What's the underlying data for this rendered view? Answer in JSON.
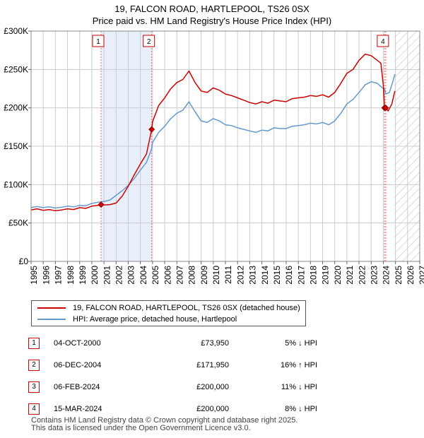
{
  "title": {
    "line1": "19, FALCON ROAD, HARTLEPOOL, TS26 0SX",
    "line2": "Price paid vs. HM Land Registry's House Price Index (HPI)"
  },
  "colors": {
    "property_line": "#cc0000",
    "hpi_line": "#6699cc",
    "shade": "#e8eefa",
    "grid": "#cccccc",
    "marker_dash": "#e07070"
  },
  "chart_data": {
    "type": "line",
    "xlim": [
      1995,
      2027
    ],
    "ylim": [
      0,
      300000
    ],
    "x_ticks": [
      "1995",
      "1996",
      "1997",
      "1998",
      "1999",
      "2000",
      "2001",
      "2002",
      "2003",
      "2004",
      "2005",
      "2006",
      "2007",
      "2008",
      "2009",
      "2010",
      "2011",
      "2012",
      "2013",
      "2014",
      "2015",
      "2016",
      "2017",
      "2018",
      "2019",
      "2020",
      "2021",
      "2022",
      "2023",
      "2024",
      "2025",
      "2026",
      "2027"
    ],
    "y_ticks": [
      {
        "value": 0,
        "label": "£0"
      },
      {
        "value": 50000,
        "label": "£50K"
      },
      {
        "value": 100000,
        "label": "£100K"
      },
      {
        "value": 150000,
        "label": "£150K"
      },
      {
        "value": 200000,
        "label": "£200K"
      },
      {
        "value": 250000,
        "label": "£250K"
      },
      {
        "value": 300000,
        "label": "£300K"
      }
    ],
    "shaded_ranges": [
      [
        2000.76,
        2004.93
      ]
    ],
    "future_hatch_from": 2024.9,
    "series": [
      {
        "name": "19, FALCON ROAD, HARTLEPOOL, TS26 0SX (detached house)",
        "color": "#cc0000",
        "points": [
          [
            1995,
            67000
          ],
          [
            1995.5,
            68500
          ],
          [
            1996,
            66500
          ],
          [
            1996.5,
            67500
          ],
          [
            1997,
            66000
          ],
          [
            1997.5,
            67000
          ],
          [
            1998,
            68500
          ],
          [
            1998.5,
            67500
          ],
          [
            1999,
            70000
          ],
          [
            1999.5,
            69000
          ],
          [
            2000,
            72000
          ],
          [
            2000.5,
            73000
          ],
          [
            2000.76,
            73950
          ],
          [
            2001,
            73500
          ],
          [
            2001.5,
            74000
          ],
          [
            2002,
            76000
          ],
          [
            2002.5,
            85000
          ],
          [
            2003,
            98000
          ],
          [
            2003.5,
            113000
          ],
          [
            2004,
            127000
          ],
          [
            2004.5,
            140000
          ],
          [
            2004.93,
            171950
          ],
          [
            2005,
            182000
          ],
          [
            2005.5,
            203000
          ],
          [
            2006,
            213000
          ],
          [
            2006.5,
            225000
          ],
          [
            2007,
            233000
          ],
          [
            2007.5,
            237000
          ],
          [
            2008,
            248000
          ],
          [
            2008.5,
            233000
          ],
          [
            2009,
            222000
          ],
          [
            2009.5,
            220000
          ],
          [
            2010,
            226000
          ],
          [
            2010.5,
            223000
          ],
          [
            2011,
            218000
          ],
          [
            2011.5,
            216000
          ],
          [
            2012,
            213000
          ],
          [
            2012.5,
            210000
          ],
          [
            2013,
            207000
          ],
          [
            2013.5,
            205000
          ],
          [
            2014,
            208000
          ],
          [
            2014.5,
            206000
          ],
          [
            2015,
            210000
          ],
          [
            2015.5,
            209000
          ],
          [
            2016,
            208000
          ],
          [
            2016.5,
            212000
          ],
          [
            2017,
            213000
          ],
          [
            2017.5,
            214000
          ],
          [
            2018,
            216000
          ],
          [
            2018.5,
            215000
          ],
          [
            2019,
            217000
          ],
          [
            2019.5,
            214000
          ],
          [
            2020,
            220000
          ],
          [
            2020.5,
            232000
          ],
          [
            2021,
            245000
          ],
          [
            2021.5,
            250000
          ],
          [
            2022,
            262000
          ],
          [
            2022.5,
            270000
          ],
          [
            2023,
            268000
          ],
          [
            2023.5,
            262000
          ],
          [
            2023.8,
            258000
          ],
          [
            2024.0,
            230000
          ],
          [
            2024.1,
            200000
          ],
          [
            2024.2,
            200000
          ],
          [
            2024.4,
            196000
          ],
          [
            2024.7,
            205000
          ],
          [
            2024.95,
            222000
          ]
        ]
      },
      {
        "name": "HPI: Average price, detached house, Hartlepool",
        "color": "#6699cc",
        "points": [
          [
            1995,
            70000
          ],
          [
            1995.5,
            71500
          ],
          [
            1996,
            70000
          ],
          [
            1996.5,
            71000
          ],
          [
            1997,
            69500
          ],
          [
            1997.5,
            70500
          ],
          [
            1998,
            72000
          ],
          [
            1998.5,
            71000
          ],
          [
            1999,
            73000
          ],
          [
            1999.5,
            72500
          ],
          [
            2000,
            75500
          ],
          [
            2000.5,
            77000
          ],
          [
            2000.76,
            77500
          ],
          [
            2001,
            78000
          ],
          [
            2001.5,
            80000
          ],
          [
            2002,
            86000
          ],
          [
            2002.5,
            92000
          ],
          [
            2003,
            99000
          ],
          [
            2003.5,
            108000
          ],
          [
            2004,
            119000
          ],
          [
            2004.5,
            129000
          ],
          [
            2004.93,
            147000
          ],
          [
            2005,
            155000
          ],
          [
            2005.5,
            168000
          ],
          [
            2006,
            176000
          ],
          [
            2006.5,
            186000
          ],
          [
            2007,
            193000
          ],
          [
            2007.5,
            197000
          ],
          [
            2008,
            208000
          ],
          [
            2008.5,
            195000
          ],
          [
            2009,
            183000
          ],
          [
            2009.5,
            181000
          ],
          [
            2010,
            186000
          ],
          [
            2010.5,
            183000
          ],
          [
            2011,
            178000
          ],
          [
            2011.5,
            177000
          ],
          [
            2012,
            174000
          ],
          [
            2012.5,
            172000
          ],
          [
            2013,
            170000
          ],
          [
            2013.5,
            168000
          ],
          [
            2014,
            171000
          ],
          [
            2014.5,
            170000
          ],
          [
            2015,
            174000
          ],
          [
            2015.5,
            173000
          ],
          [
            2016,
            173000
          ],
          [
            2016.5,
            176000
          ],
          [
            2017,
            177000
          ],
          [
            2017.5,
            178000
          ],
          [
            2018,
            180000
          ],
          [
            2018.5,
            179000
          ],
          [
            2019,
            181000
          ],
          [
            2019.5,
            178000
          ],
          [
            2020,
            183000
          ],
          [
            2020.5,
            193000
          ],
          [
            2021,
            205000
          ],
          [
            2021.5,
            211000
          ],
          [
            2022,
            220000
          ],
          [
            2022.5,
            230000
          ],
          [
            2023,
            234000
          ],
          [
            2023.5,
            232000
          ],
          [
            2024,
            225000
          ],
          [
            2024.1,
            225000
          ],
          [
            2024.2,
            218000
          ],
          [
            2024.5,
            220000
          ],
          [
            2024.8,
            235000
          ],
          [
            2024.95,
            244000
          ]
        ]
      }
    ],
    "sale_markers": [
      {
        "label": "1",
        "x": 2000.76,
        "y": 73950
      },
      {
        "label": "2",
        "x": 2004.93,
        "y": 171950
      },
      {
        "label": "3",
        "x": 2024.1,
        "y": 200000
      },
      {
        "label": "4",
        "x": 2024.2,
        "y": 200000
      }
    ],
    "chart_boxes": [
      {
        "label": "1",
        "x": 2000.76
      },
      {
        "label": "2",
        "x": 2004.93
      },
      {
        "label": "4",
        "x": 2024.2
      }
    ]
  },
  "legend": {
    "property": "19, FALCON ROAD, HARTLEPOOL, TS26 0SX (detached house)",
    "hpi": "HPI: Average price, detached house, Hartlepool"
  },
  "sales": [
    {
      "num": "1",
      "date": "04-OCT-2000",
      "price": "£73,950",
      "hpi": "5% ↓ HPI"
    },
    {
      "num": "2",
      "date": "06-DEC-2004",
      "price": "£171,950",
      "hpi": "16% ↑ HPI"
    },
    {
      "num": "3",
      "date": "06-FEB-2024",
      "price": "£200,000",
      "hpi": "11% ↓ HPI"
    },
    {
      "num": "4",
      "date": "15-MAR-2024",
      "price": "£200,000",
      "hpi": "8% ↓ HPI"
    }
  ],
  "footer": {
    "line1": "Contains HM Land Registry data © Crown copyright and database right 2025.",
    "line2": "This data is licensed under the Open Government Licence v3.0."
  }
}
